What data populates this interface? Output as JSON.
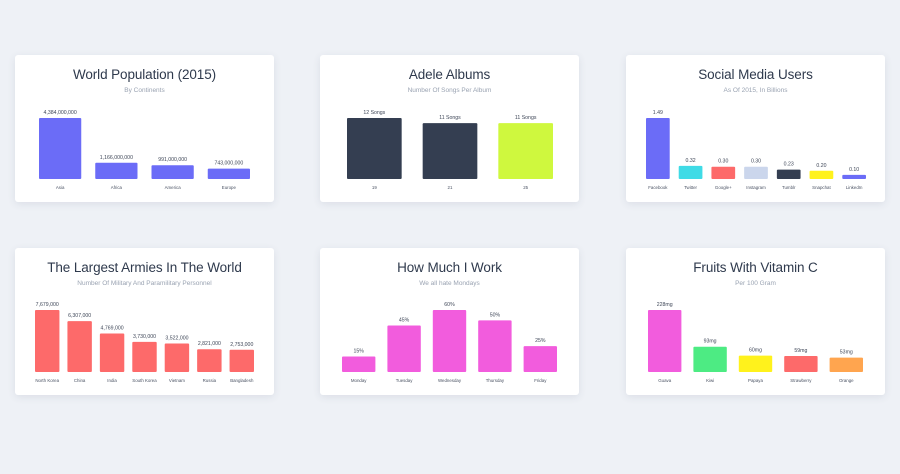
{
  "chart_data": [
    {
      "type": "bar",
      "title": "World Population (2015)",
      "subtitle": "By Continents",
      "categories": [
        "Asia",
        "Africa",
        "America",
        "Europe"
      ],
      "values": [
        4384000000,
        1166000000,
        991000000,
        743000000
      ],
      "value_labels": [
        "4,384,000,000",
        "1,166,000,000",
        "991,000,000",
        "743,000,000"
      ],
      "colors": [
        "#6b6cf7",
        "#6b6cf7",
        "#6b6cf7",
        "#6b6cf7"
      ],
      "ylim": [
        0,
        4384000000
      ]
    },
    {
      "type": "bar",
      "title": "Adele Albums",
      "subtitle": "Number Of Songs Per Album",
      "categories": [
        "19",
        "21",
        "25"
      ],
      "values": [
        12,
        11,
        11
      ],
      "value_labels": [
        "12 Songs",
        "11 Songs",
        "11 Songs"
      ],
      "colors": [
        "#343e51",
        "#343e51",
        "#cff83e"
      ],
      "ylim": [
        0,
        12
      ]
    },
    {
      "type": "bar",
      "title": "Social Media Users",
      "subtitle": "As Of 2015, In Billions",
      "categories": [
        "Facebook",
        "Twitter",
        "Google+",
        "Instagram",
        "Tumblr",
        "Snapchat",
        "LinkedIn"
      ],
      "values": [
        1.49,
        0.32,
        0.3,
        0.3,
        0.23,
        0.2,
        0.1
      ],
      "value_labels": [
        "1.49",
        "0.32",
        "0.30",
        "0.30",
        "0.23",
        "0.20",
        "0.10"
      ],
      "colors": [
        "#6b6cf7",
        "#3fdbe6",
        "#fd6a6a",
        "#cbd6ec",
        "#343e51",
        "#fff21c",
        "#6b6cf7"
      ],
      "ylim": [
        0,
        1.49
      ]
    },
    {
      "type": "bar",
      "title": "The Largest Armies In The World",
      "subtitle": "Number Of Military And Paramilitary Personnel",
      "categories": [
        "North Korea",
        "China",
        "India",
        "South Korea",
        "Vietnam",
        "Russia",
        "Bangladesh"
      ],
      "values": [
        7679000,
        6307000,
        4769000,
        3730000,
        3522000,
        2821000,
        2753000
      ],
      "value_labels": [
        "7,679,000",
        "6,307,000",
        "4,769,000",
        "3,730,000",
        "3,522,000",
        "2,821,000",
        "2,753,000"
      ],
      "colors": [
        "#fd6a6a",
        "#fd6a6a",
        "#fd6a6a",
        "#fd6a6a",
        "#fd6a6a",
        "#fd6a6a",
        "#fd6a6a"
      ],
      "ylim": [
        0,
        7679000
      ]
    },
    {
      "type": "bar",
      "title": "How Much I Work",
      "subtitle": "We all hate Mondays",
      "categories": [
        "Monday",
        "Tuesday",
        "Wednesday",
        "Thursday",
        "Friday"
      ],
      "values": [
        15,
        45,
        60,
        50,
        25
      ],
      "value_labels": [
        "15%",
        "45%",
        "60%",
        "50%",
        "25%"
      ],
      "colors": [
        "#f25cdd",
        "#f25cdd",
        "#f25cdd",
        "#f25cdd",
        "#f25cdd"
      ],
      "ylim": [
        0,
        60
      ]
    },
    {
      "type": "bar",
      "title": "Fruits With Vitamin C",
      "subtitle": "Per 100 Gram",
      "categories": [
        "Guava",
        "Kiwi",
        "Papaya",
        "Strawberry",
        "Orange"
      ],
      "values": [
        228,
        93,
        60,
        59,
        53
      ],
      "value_labels": [
        "228mg",
        "93mg",
        "60mg",
        "59mg",
        "53mg"
      ],
      "colors": [
        "#f25cdd",
        "#4deb83",
        "#fff21c",
        "#fd6a6a",
        "#ffa54f"
      ],
      "ylim": [
        0,
        228
      ]
    }
  ]
}
